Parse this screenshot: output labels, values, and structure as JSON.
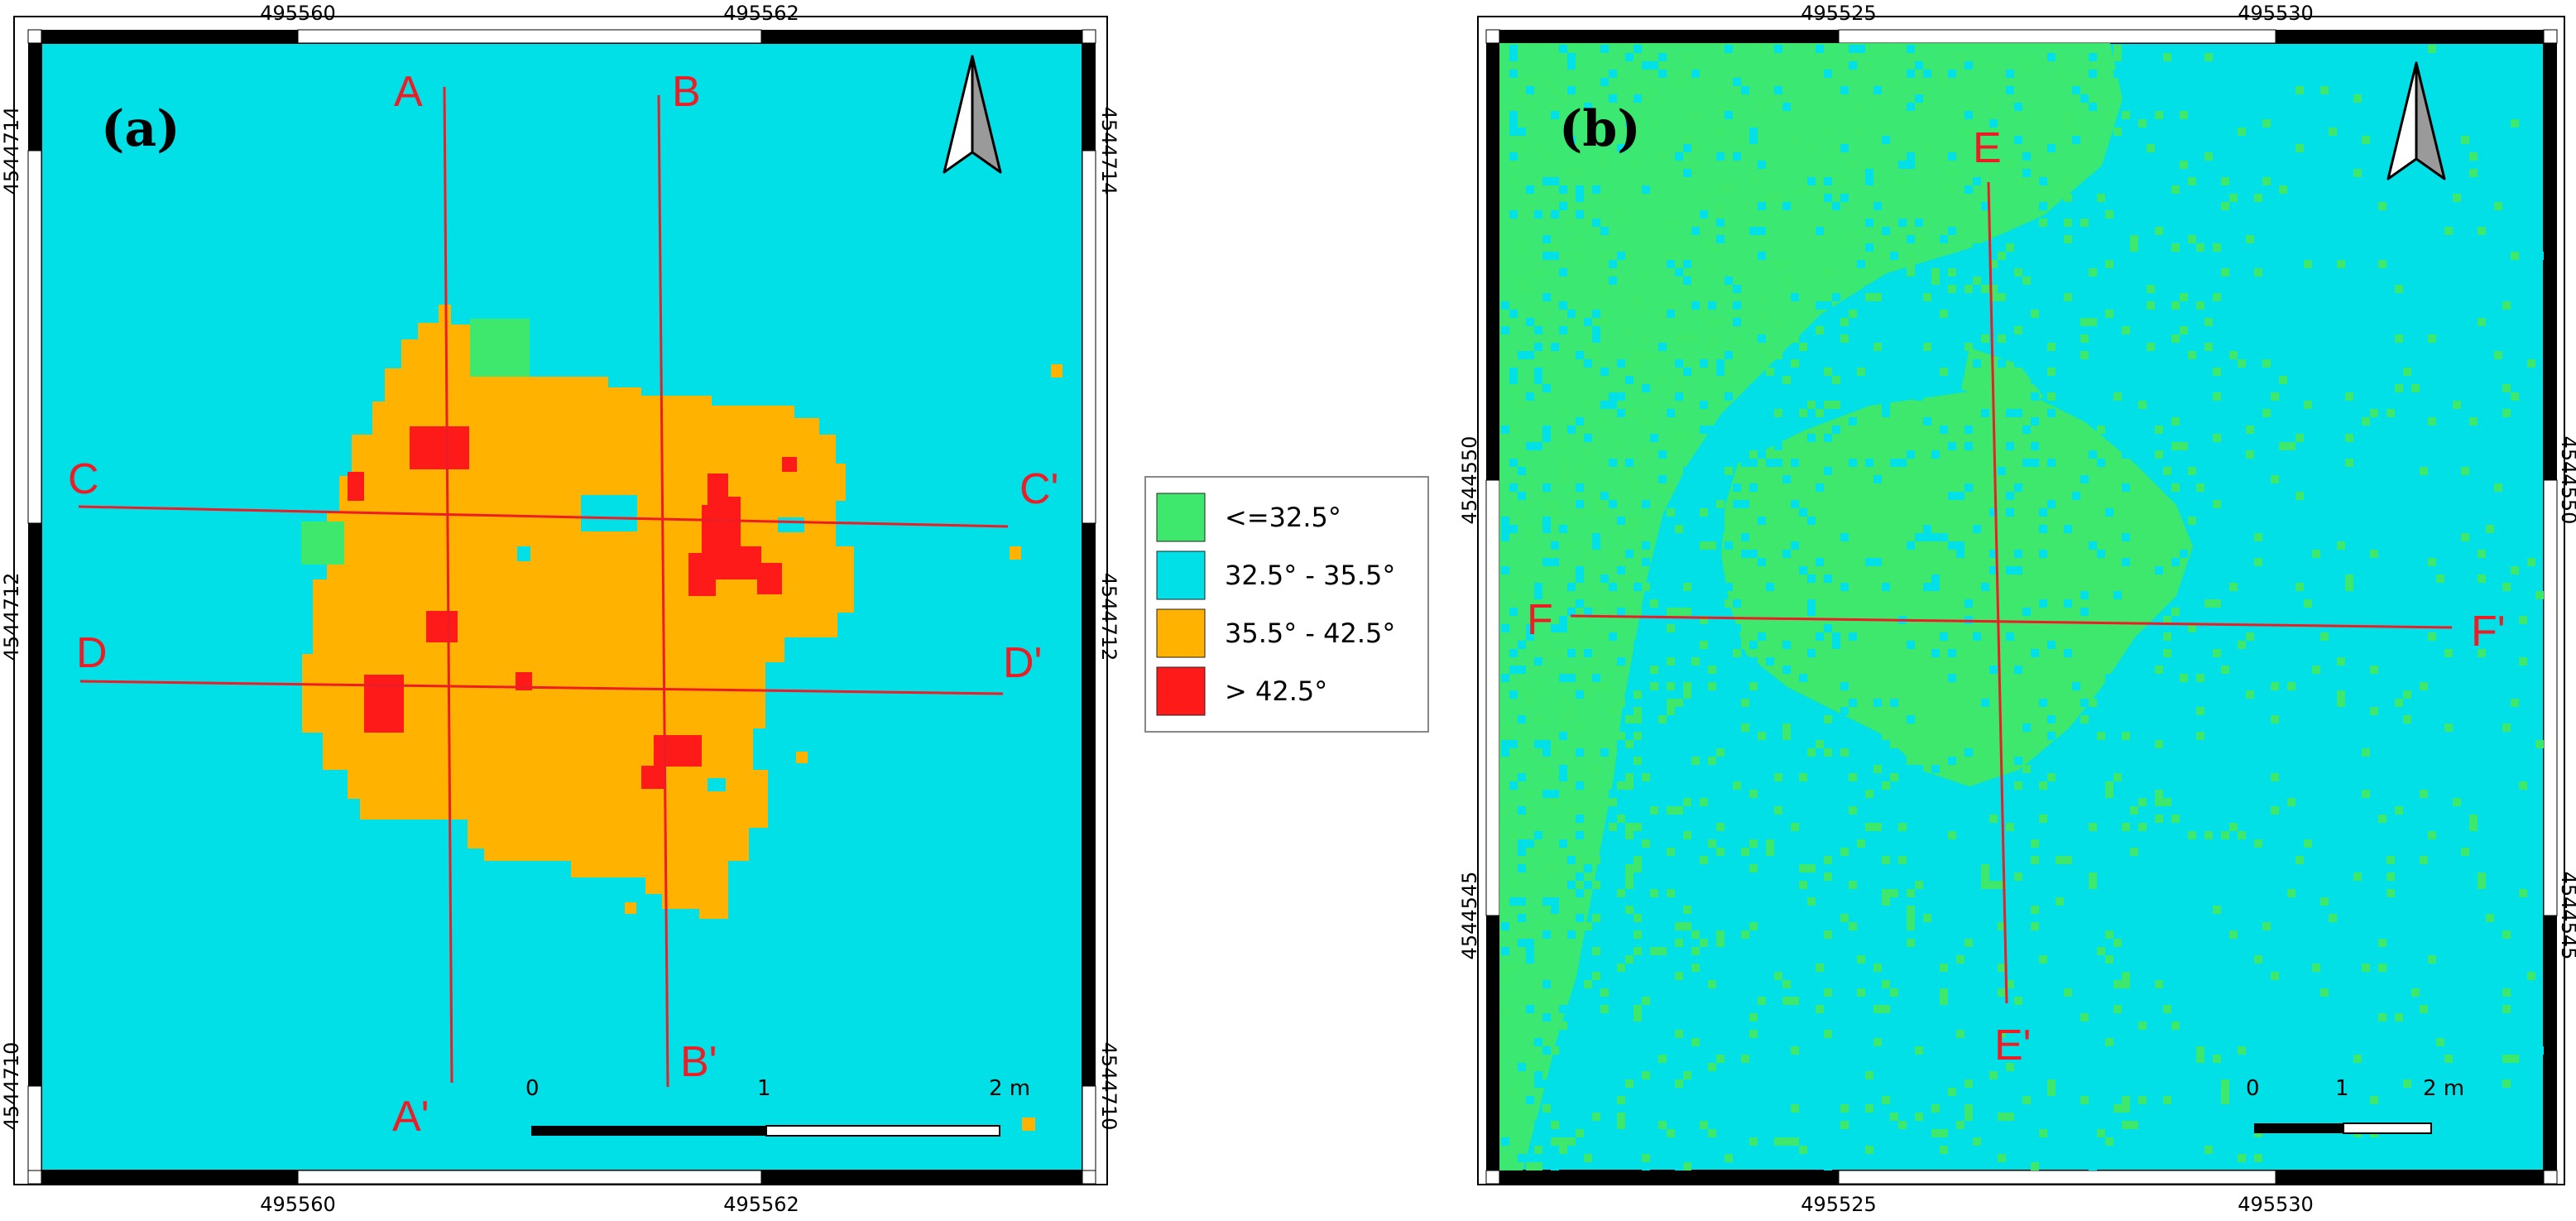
{
  "panels": [
    {
      "tag": "(a)",
      "x_ticks_top": [
        "495560",
        "495562"
      ],
      "x_ticks_bottom": [
        "495560",
        "495562"
      ],
      "y_ticks_left": [
        "4544714",
        "4544712",
        "4544710"
      ],
      "y_ticks_right": [
        "4544714",
        "4544712",
        "4544710"
      ],
      "profiles": [
        {
          "start": "A",
          "end": "A'"
        },
        {
          "start": "B",
          "end": "B'"
        },
        {
          "start": "C",
          "end": "C'"
        },
        {
          "start": "D",
          "end": "D'"
        }
      ],
      "scalebar": {
        "labels": [
          "0",
          "1",
          "2 m"
        ]
      }
    },
    {
      "tag": "(b)",
      "x_ticks_top": [
        "495525",
        "495530"
      ],
      "x_ticks_bottom": [
        "495525",
        "495530"
      ],
      "y_ticks_left": [
        "4544550",
        "4544545"
      ],
      "y_ticks_right": [
        "4544550",
        "4544545"
      ],
      "profiles": [
        {
          "start": "E",
          "end": "E'"
        },
        {
          "start": "F",
          "end": "F'"
        }
      ],
      "scalebar": {
        "labels": [
          "0",
          "1",
          "2 m"
        ]
      }
    }
  ],
  "legend": {
    "items": [
      {
        "label": "<=32.5°",
        "color": "#3de86c"
      },
      {
        "label": "32.5° - 35.5°",
        "color": "#00e0e6"
      },
      {
        "label": "35.5° - 42.5°",
        "color": "#ffb300"
      },
      {
        "label": "> 42.5°",
        "color": "#ff1a1a"
      }
    ]
  },
  "colors": {
    "profile_line": "#ee1c25",
    "frame": "#000000",
    "background": "#00e0e6",
    "green": "#3de86c",
    "orange": "#ffb300",
    "red": "#ff1a1a"
  },
  "icons": [
    "north-arrow-icon"
  ]
}
